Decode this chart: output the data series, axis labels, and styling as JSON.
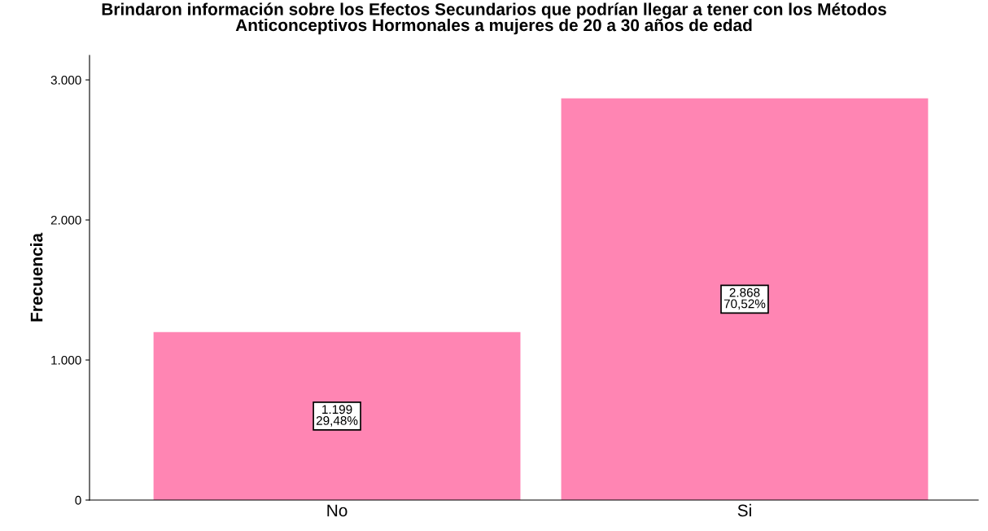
{
  "chart_data": {
    "type": "bar",
    "title": "Brindaron información sobre los Efectos Secundarios que podrían llegar a tener con los Métodos\nAnticonceptivos Hormonales a mujeres de 20 a 30 años de edad",
    "ylabel": "Frecuencia",
    "categories": [
      "No",
      "Si"
    ],
    "values": [
      1199,
      2868
    ],
    "value_labels": [
      "1.199\n29,48%",
      "2.868\n70,52%"
    ],
    "color": "#ff85b3",
    "ylim": [
      0,
      3175
    ],
    "yticks": [
      {
        "value": 0,
        "label": "0"
      },
      {
        "value": 1000,
        "label": "1.000"
      },
      {
        "value": 2000,
        "label": "2.000"
      },
      {
        "value": 3000,
        "label": "3.000"
      }
    ],
    "grid": false,
    "legend": false
  }
}
